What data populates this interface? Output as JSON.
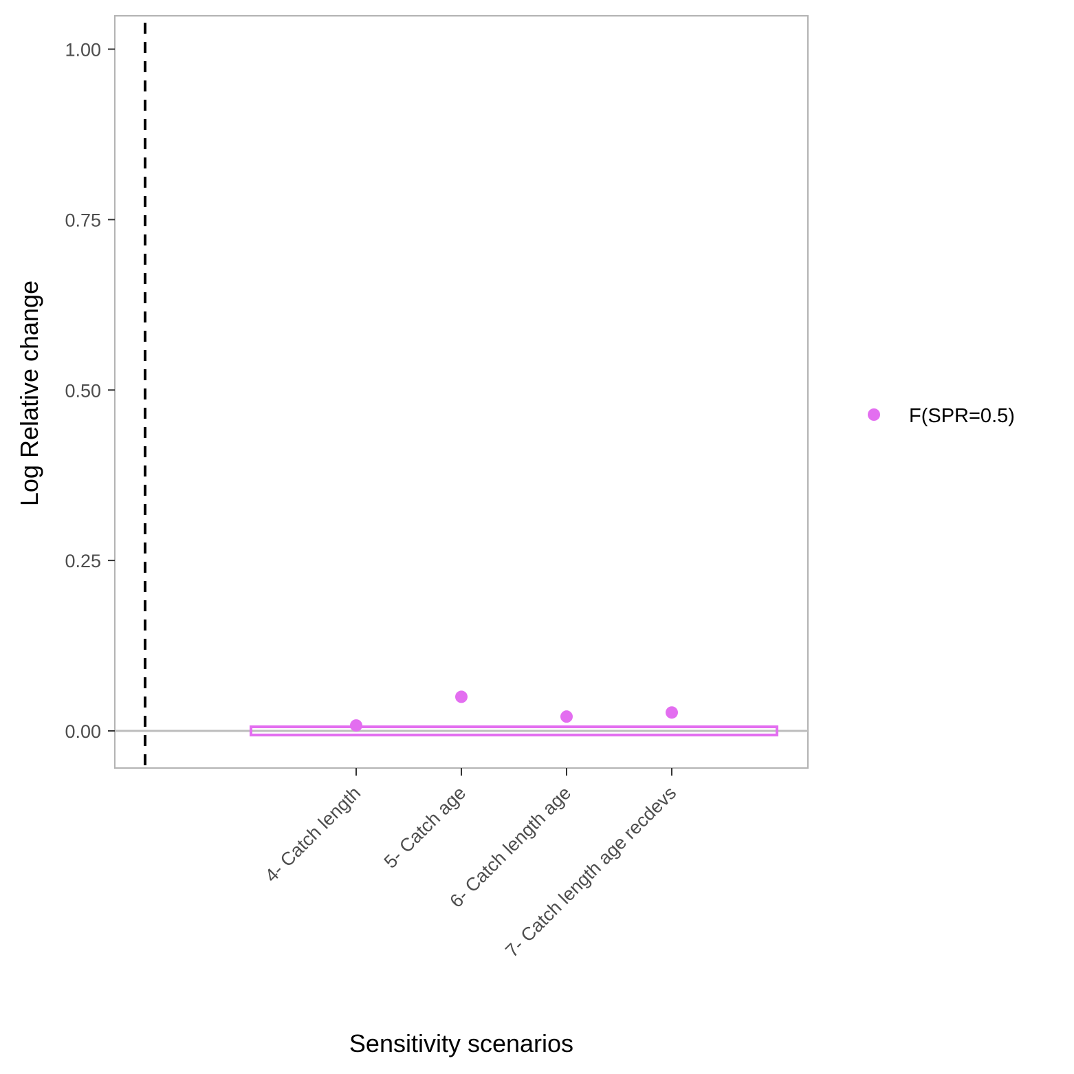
{
  "chart_data": {
    "type": "scatter",
    "title": "",
    "xlabel": "Sensitivity scenarios",
    "ylabel": "Log Relative change",
    "categories": [
      "4- Catch length",
      "5- Catch age",
      "6- Catch length age",
      "7- Catch length age recdevs"
    ],
    "y_ticks": [
      "0.00",
      "0.25",
      "0.50",
      "0.75",
      "1.00"
    ],
    "ylim": [
      -0.055,
      1.04
    ],
    "series": [
      {
        "name": "F(SPR=0.5)",
        "color": "#e36ef0",
        "values": [
          0.008,
          0.05,
          0.021,
          0.027
        ]
      }
    ],
    "band": {
      "from_category_offset": -1,
      "to_category_offset": 1,
      "ymin": -0.006,
      "ymax": 0.006,
      "color": "#e36ef0"
    },
    "reference_hline_y": 0,
    "reference_vline": "dashed",
    "grid": false,
    "legend_position": "right"
  }
}
